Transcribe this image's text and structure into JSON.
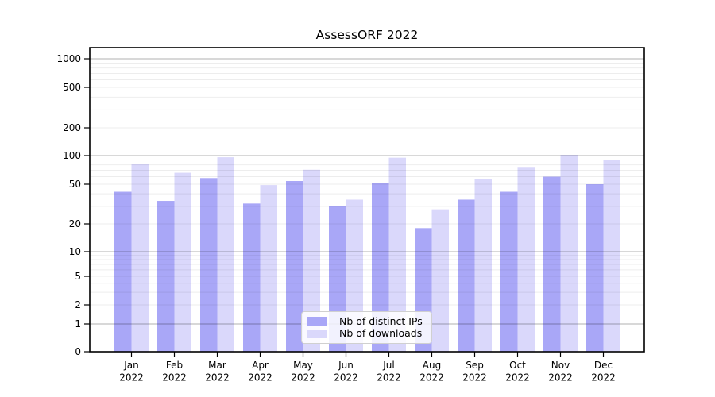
{
  "chart_data": {
    "type": "bar",
    "title": "AssessORF 2022",
    "months": [
      "Jan",
      "Feb",
      "Mar",
      "Apr",
      "May",
      "Jun",
      "Jul",
      "Aug",
      "Sep",
      "Oct",
      "Nov",
      "Dec"
    ],
    "year_label": "2022",
    "series": [
      {
        "name": "Nb of distinct IPs",
        "color": "#a9a7f7",
        "values": [
          42,
          34,
          58,
          32,
          54,
          30,
          51,
          18,
          35,
          42,
          60,
          50
        ]
      },
      {
        "name": "Nb of downloads",
        "color": "#dad8fb",
        "values": [
          81,
          66,
          96,
          49,
          71,
          35,
          95,
          28,
          57,
          76,
          102,
          90
        ]
      }
    ],
    "y_axis": {
      "scale": "symlog",
      "tick_values": [
        0,
        1,
        2,
        5,
        10,
        20,
        50,
        100,
        200,
        500,
        1000
      ],
      "tick_labels": [
        "0",
        "1",
        "2",
        "5",
        "10",
        "20",
        "50",
        "100",
        "200",
        "500",
        "1000"
      ]
    },
    "x_axis": {
      "tick_label_line2": "2022"
    },
    "legend": {
      "position": "bottom-center",
      "entries": [
        "Nb of distinct IPs",
        "Nb of downloads"
      ]
    },
    "grid": {
      "major_values": [
        1,
        10,
        100,
        1000
      ],
      "minor": "log minors 2-9 per decade"
    },
    "colors": {
      "background": "#ffffff",
      "axis": "#000000",
      "major_grid": "#b3b3b3",
      "minor_grid": "#ededed",
      "ips_bar": "#a9a7f7",
      "downloads_bar": "#dad8fb"
    }
  }
}
